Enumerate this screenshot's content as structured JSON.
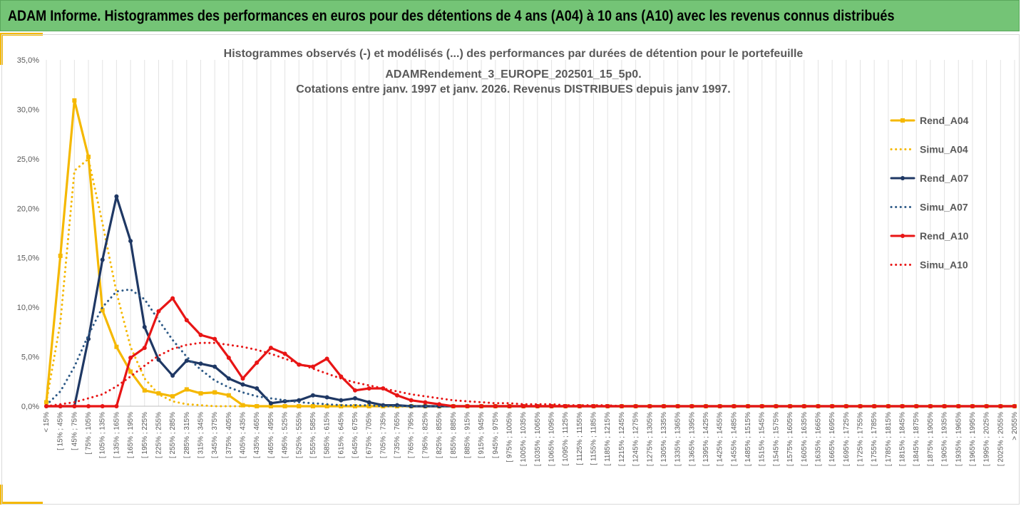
{
  "header": {
    "title": "ADAM Informe. Histogrammes des performances en euros pour des détentions de 4 ans (A04) à 10 ans (A10) avec les revenus connus distribués"
  },
  "colors": {
    "header_bg": "#74c476",
    "accent": "#f5b800",
    "grid": "#d9d9d9",
    "text": "#595959"
  },
  "chart_data": {
    "type": "line",
    "title_lines": [
      "Histogrammes observés (-) et modélisés (...) des performances par durées de détention pour le portefeuille",
      "ADAMRendement_3_EUROPE_202501_15_5p0.",
      "Cotations entre janv. 1997 et janv. 2026. Revenus DISTRIBUES depuis janv 1997."
    ],
    "ylim": [
      0,
      0.35
    ],
    "yticks": [
      "0,0%",
      "5,0%",
      "10,0%",
      "15,0%",
      "20,0%",
      "25,0%",
      "30,0%",
      "35,0%"
    ],
    "grid": "vertical",
    "legend_position": "right",
    "categories": [
      "< 15%",
      "[ 15% ; 45%",
      "[ 45% ; 75%",
      "[ 75% ; 105%",
      "[ 105% ; 135%",
      "[ 135% ; 165%",
      "[ 165% ; 195%",
      "[ 195% ; 225%",
      "[ 225% ; 255%",
      "[ 255% ; 285%",
      "[ 285% ; 315%",
      "[ 315% ; 345%",
      "[ 345% ; 375%",
      "[ 375% ; 405%",
      "[ 405% ; 435%",
      "[ 435% ; 465%",
      "[ 465% ; 495%",
      "[ 495% ; 525%",
      "[ 525% ; 555%",
      "[ 555% ; 585%",
      "[ 585% ; 615%",
      "[ 615% ; 645%",
      "[ 645% ; 675%",
      "[ 675% ; 705%",
      "[ 705% ; 735%",
      "[ 735% ; 765%",
      "[ 765% ; 795%",
      "[ 795% ; 825%",
      "[ 825% ; 855%",
      "[ 855% ; 885%",
      "[ 885% ; 915%",
      "[ 915% ; 945%",
      "[ 945% ; 975%",
      "[ 975% ; 1005%",
      "[ 1005% ; 1035%",
      "[ 1035% ; 1065%",
      "[ 1065% ; 1095%",
      "[ 1095% ; 1125%",
      "[ 1125% ; 1155%",
      "[ 1155% ; 1185%",
      "[ 1185% ; 1215%",
      "[ 1215% ; 1245%",
      "[ 1245% ; 1275%",
      "[ 1275% ; 1305%",
      "[ 1305% ; 1335%",
      "[ 1335% ; 1365%",
      "[ 1365% ; 1395%",
      "[ 1395% ; 1425%",
      "[ 1425% ; 1455%",
      "[ 1455% ; 1485%",
      "[ 1485% ; 1515%",
      "[ 1515% ; 1545%",
      "[ 1545% ; 1575%",
      "[ 1575% ; 1605%",
      "[ 1605% ; 1635%",
      "[ 1635% ; 1665%",
      "[ 1665% ; 1695%",
      "[ 1695% ; 1725%",
      "[ 1725% ; 1755%",
      "[ 1755% ; 1785%",
      "[ 1785% ; 1815%",
      "[ 1815% ; 1845%",
      "[ 1845% ; 1875%",
      "[ 1875% ; 1905%",
      "[ 1905% ; 1935%",
      "[ 1935% ; 1965%",
      "[ 1965% ; 1995%",
      "[ 1995% ; 2025%",
      "[ 2025% ; 2055%",
      "> 2055%"
    ],
    "series": [
      {
        "name": "Rend_A04",
        "color": "#f5b800",
        "style": "solid",
        "marker": "square",
        "values": [
          0.004,
          0.152,
          0.309,
          0.252,
          0.097,
          0.06,
          0.035,
          0.016,
          0.013,
          0.01,
          0.017,
          0.013,
          0.014,
          0.011,
          0.001,
          0,
          0,
          0,
          0,
          0,
          0,
          0,
          0,
          0,
          0,
          0,
          0,
          0,
          0,
          0,
          0,
          0,
          0,
          0,
          0,
          0,
          0,
          0,
          0,
          0,
          0,
          0,
          0,
          0,
          0,
          0,
          0,
          0,
          0,
          0,
          0,
          0,
          0,
          0,
          0,
          0,
          0,
          0,
          0,
          0,
          0,
          0,
          0,
          0,
          0,
          0,
          0,
          0,
          0,
          0
        ]
      },
      {
        "name": "Simu_A04",
        "color": "#f5b800",
        "style": "dotted",
        "marker": "none",
        "values": [
          0.004,
          0.085,
          0.238,
          0.25,
          0.185,
          0.115,
          0.06,
          0.028,
          0.012,
          0.005,
          0.002,
          0.001,
          0,
          0,
          0,
          0,
          0,
          0,
          0,
          0,
          0,
          0,
          0,
          0,
          0,
          0,
          0,
          0,
          0,
          0,
          0,
          0,
          0,
          0,
          0,
          0,
          0,
          0,
          0,
          0,
          0,
          0,
          0,
          0,
          0,
          0,
          0,
          0,
          0,
          0,
          0,
          0,
          0,
          0,
          0,
          0,
          0,
          0,
          0,
          0,
          0,
          0,
          0,
          0,
          0,
          0,
          0,
          0,
          0,
          0
        ]
      },
      {
        "name": "Rend_A07",
        "color": "#1f3864",
        "style": "solid",
        "marker": "circle",
        "values": [
          0,
          0,
          0,
          0.068,
          0.148,
          0.212,
          0.167,
          0.08,
          0.047,
          0.031,
          0.046,
          0.043,
          0.04,
          0.028,
          0.022,
          0.018,
          0.003,
          0.005,
          0.006,
          0.011,
          0.009,
          0.006,
          0.008,
          0.004,
          0.001,
          0.001,
          0,
          0,
          0,
          0,
          0,
          0,
          0,
          0,
          0,
          0,
          0,
          0,
          0,
          0,
          0,
          0,
          0,
          0,
          0,
          0,
          0,
          0,
          0,
          0,
          0,
          0,
          0,
          0,
          0,
          0,
          0,
          0,
          0,
          0,
          0,
          0,
          0,
          0,
          0,
          0,
          0,
          0,
          0,
          0
        ]
      },
      {
        "name": "Simu_A07",
        "color": "#2e5a87",
        "style": "dotted",
        "marker": "none",
        "values": [
          0.001,
          0.015,
          0.04,
          0.072,
          0.1,
          0.116,
          0.118,
          0.108,
          0.087,
          0.067,
          0.05,
          0.037,
          0.026,
          0.019,
          0.014,
          0.01,
          0.008,
          0.006,
          0.004,
          0.003,
          0.002,
          0.001,
          0.001,
          0.001,
          0,
          0,
          0,
          0,
          0,
          0,
          0,
          0,
          0,
          0,
          0,
          0,
          0,
          0,
          0,
          0,
          0,
          0,
          0,
          0,
          0,
          0,
          0,
          0,
          0,
          0,
          0,
          0,
          0,
          0,
          0,
          0,
          0,
          0,
          0,
          0,
          0,
          0,
          0,
          0,
          0,
          0,
          0,
          0,
          0,
          0
        ]
      },
      {
        "name": "Rend_A10",
        "color": "#e81515",
        "style": "solid",
        "marker": "circle",
        "values": [
          0,
          0,
          0,
          0,
          0,
          0,
          0.049,
          0.059,
          0.096,
          0.109,
          0.087,
          0.072,
          0.068,
          0.049,
          0.028,
          0.044,
          0.059,
          0.053,
          0.042,
          0.04,
          0.048,
          0.03,
          0.016,
          0.018,
          0.018,
          0.011,
          0.006,
          0.004,
          0.002,
          0,
          0,
          0,
          0,
          0,
          0,
          0,
          0,
          0,
          0,
          0,
          0,
          0,
          0,
          0,
          0,
          0,
          0,
          0,
          0,
          0,
          0,
          0,
          0,
          0,
          0,
          0,
          0,
          0,
          0,
          0,
          0,
          0,
          0,
          0,
          0,
          0,
          0,
          0,
          0,
          0
        ]
      },
      {
        "name": "Simu_A10",
        "color": "#e81515",
        "style": "dotted",
        "marker": "none",
        "values": [
          0,
          0.002,
          0.004,
          0.008,
          0.012,
          0.02,
          0.03,
          0.041,
          0.051,
          0.058,
          0.062,
          0.064,
          0.064,
          0.062,
          0.06,
          0.057,
          0.053,
          0.048,
          0.043,
          0.038,
          0.033,
          0.028,
          0.024,
          0.021,
          0.018,
          0.015,
          0.012,
          0.01,
          0.008,
          0.006,
          0.005,
          0.004,
          0.003,
          0.003,
          0.002,
          0.002,
          0.002,
          0.001,
          0.001,
          0.001,
          0.001,
          0,
          0,
          0,
          0,
          0,
          0,
          0,
          0,
          0,
          0,
          0,
          0,
          0,
          0,
          0,
          0,
          0,
          0,
          0,
          0,
          0,
          0,
          0,
          0,
          0,
          0,
          0,
          0,
          0
        ]
      }
    ]
  }
}
